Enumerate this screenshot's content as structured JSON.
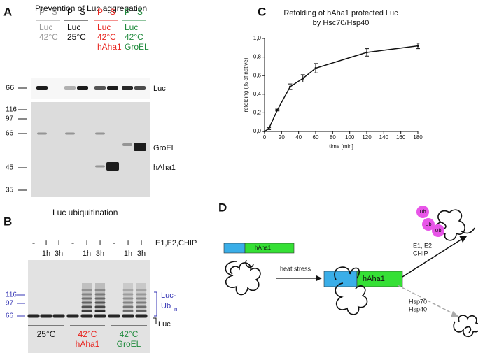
{
  "panel_a": {
    "letter": "A",
    "title": "Prevention of Luc aggregation",
    "lanes": [
      {
        "fractions": [
          "P",
          "S"
        ],
        "sample": [
          "Luc",
          "42°C"
        ],
        "color": "#999999"
      },
      {
        "fractions": [
          "P",
          "S"
        ],
        "sample": [
          "Luc",
          "25°C"
        ],
        "color": "#111111"
      },
      {
        "fractions": [
          "P",
          "S"
        ],
        "sample": [
          "Luc",
          "42°C",
          "hAha1"
        ],
        "color": "#e8251f"
      },
      {
        "fractions": [
          "P",
          "S"
        ],
        "sample": [
          "Luc",
          "42°C",
          "GroEL"
        ],
        "color": "#1f8a3c"
      }
    ],
    "top_marker": "66",
    "top_band": "Luc",
    "markers": [
      "116",
      "97",
      "66",
      "45",
      "35"
    ],
    "bands": [
      "GroEL",
      "hAha1"
    ]
  },
  "panel_b": {
    "letter": "B",
    "title": "Luc ubiquitination",
    "treatment": [
      "-",
      "+",
      "+",
      "-",
      "+",
      "+",
      "-",
      "+",
      "+"
    ],
    "times": [
      "1h",
      "3h",
      "1h",
      "3h",
      "1h",
      "3h"
    ],
    "treatment_label": "E1,E2,CHIP",
    "markers": [
      "116",
      "97",
      "66"
    ],
    "ub_label": [
      "Luc-",
      "Ub",
      "n"
    ],
    "luc_label": "Luc",
    "groups": [
      {
        "lines": [
          "25°C"
        ],
        "color": "#111111"
      },
      {
        "lines": [
          "42°C",
          "hAha1"
        ],
        "color": "#e8251f"
      },
      {
        "lines": [
          "42°C",
          "GroEL"
        ],
        "color": "#1f8a3c"
      }
    ],
    "marker_color": "#3434b4"
  },
  "chart_data": {
    "type": "line",
    "letter": "C",
    "title": [
      "Refolding of hAha1 protected Luc",
      "by Hsc70/Hsp40"
    ],
    "x_label": "time [min]",
    "y_label": "refolding (% of native)",
    "x": [
      0,
      5,
      15,
      30,
      45,
      60,
      120,
      180
    ],
    "series": [
      {
        "color": "#111111",
        "values": [
          0.0,
          0.03,
          0.23,
          0.48,
          0.57,
          0.68,
          0.85,
          0.92
        ],
        "errors": [
          0.0,
          0.01,
          0.01,
          0.03,
          0.04,
          0.05,
          0.04,
          0.03
        ]
      }
    ],
    "xlim": [
      0,
      180
    ],
    "xticks": [
      0,
      20,
      40,
      60,
      80,
      100,
      120,
      140,
      160,
      180
    ],
    "ylim": [
      0,
      1
    ],
    "yticks": [
      {
        "value": 0,
        "label": "0,0"
      },
      {
        "value": 0.2,
        "label": "0,2"
      },
      {
        "value": 0.4,
        "label": "0,4"
      },
      {
        "value": 0.6,
        "label": "0,6"
      },
      {
        "value": 0.8,
        "label": "0,8"
      },
      {
        "value": 1,
        "label": "1,0"
      }
    ]
  },
  "panel_d": {
    "letter": "D",
    "aha_label": "hAha1",
    "complex_label": "hAha1",
    "heat": "heat stress",
    "upper_path": [
      "E1, E2",
      "CHIP"
    ],
    "ub": "Ub",
    "lower_path": [
      "Hsp70",
      "Hsp40"
    ]
  }
}
